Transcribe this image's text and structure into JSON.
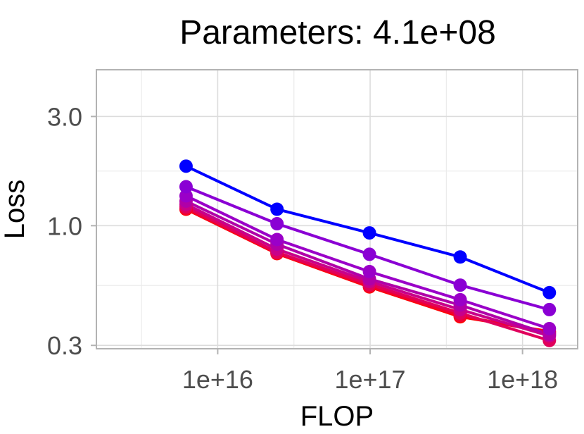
{
  "chart_data": {
    "type": "line",
    "title": "Parameters: 4.1e+08",
    "xlabel": "FLOP",
    "ylabel": "Loss",
    "x_scale": "log",
    "y_scale": "log",
    "xlim": [
      1600000000000000.0,
      2.3e+18
    ],
    "ylim": [
      0.29,
      4.8
    ],
    "x_ticks": [
      1e+16,
      1e+17,
      1e+18
    ],
    "x_tick_labels": [
      "1e+16",
      "1e+17",
      "1e+18"
    ],
    "y_ticks": [
      0.3,
      1.0,
      3.0
    ],
    "y_tick_labels": [
      "0.3",
      "1.0",
      "3.0"
    ],
    "grid": true,
    "legend": "none",
    "x": [
      6200000000000000.0,
      2.45e+16,
      9.9e+16,
      3.9e+17,
      1.5e+18
    ],
    "series": [
      {
        "color": "#0000ff",
        "values": [
          1.82,
          1.18,
          0.93,
          0.73,
          0.51
        ]
      },
      {
        "color": "#8a00d4",
        "values": [
          1.48,
          1.02,
          0.75,
          0.55,
          0.43
        ]
      },
      {
        "color": "#9a00c8",
        "values": [
          1.35,
          0.87,
          0.63,
          0.475,
          0.355
        ]
      },
      {
        "color": "#b000a8",
        "values": [
          1.28,
          0.83,
          0.585,
          0.45,
          0.335
        ]
      },
      {
        "color": "#c8008a",
        "values": [
          1.24,
          0.79,
          0.57,
          0.43,
          0.33
        ]
      },
      {
        "color": "#e0005c",
        "values": [
          1.21,
          0.765,
          0.555,
          0.415,
          0.315
        ]
      },
      {
        "color": "#f00030",
        "values": [
          1.19,
          0.76,
          0.545,
          0.405,
          0.34
        ]
      },
      {
        "color": "#ff0000",
        "values": [
          1.18,
          0.755,
          0.54,
          0.4,
          0.345
        ]
      }
    ]
  }
}
